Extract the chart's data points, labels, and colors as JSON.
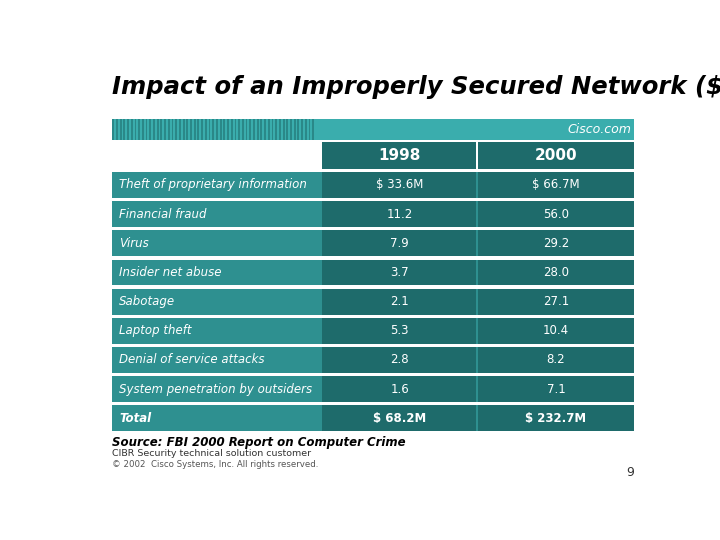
{
  "title": "Impact of an Improperly Secured Network ($M)",
  "cisco_logo": "Cisco.com",
  "col_headers": [
    "1998",
    "2000"
  ],
  "rows": [
    {
      "label": "Theft of proprietary information",
      "val1998": "$ 33.6M",
      "val2000": "$ 66.7M",
      "is_total": false
    },
    {
      "label": "Financial fraud",
      "val1998": "11.2",
      "val2000": "56.0",
      "is_total": false
    },
    {
      "label": "Virus",
      "val1998": "7.9",
      "val2000": "29.2",
      "is_total": false
    },
    {
      "label": "Insider net abuse",
      "val1998": "3.7",
      "val2000": "28.0",
      "is_total": false
    },
    {
      "label": "Sabotage",
      "val1998": "2.1",
      "val2000": "27.1",
      "is_total": false
    },
    {
      "label": "Laptop theft",
      "val1998": "5.3",
      "val2000": "10.4",
      "is_total": false
    },
    {
      "label": "Denial of service attacks",
      "val1998": "2.8",
      "val2000": "8.2",
      "is_total": false
    },
    {
      "label": "System penetration by outsiders",
      "val1998": "1.6",
      "val2000": "7.1",
      "is_total": false
    },
    {
      "label": "Total",
      "val1998": "$ 68.2M",
      "val2000": "$ 232.7M",
      "is_total": true
    }
  ],
  "teal_main": "#2E9090",
  "teal_dark": "#1E6B6B",
  "teal_banner": "#3AADAD",
  "white_text": "#FFFFFF",
  "bg_color": "#FFFFFF",
  "title_color": "#000000",
  "source_text": "Source: FBI 2000 Report on Computer Crime",
  "source2_text": "CIBR Security technical solution customer",
  "footer_text": "© 2002  Cisco Systems, Inc. All rights reserved.",
  "page_num": "9"
}
